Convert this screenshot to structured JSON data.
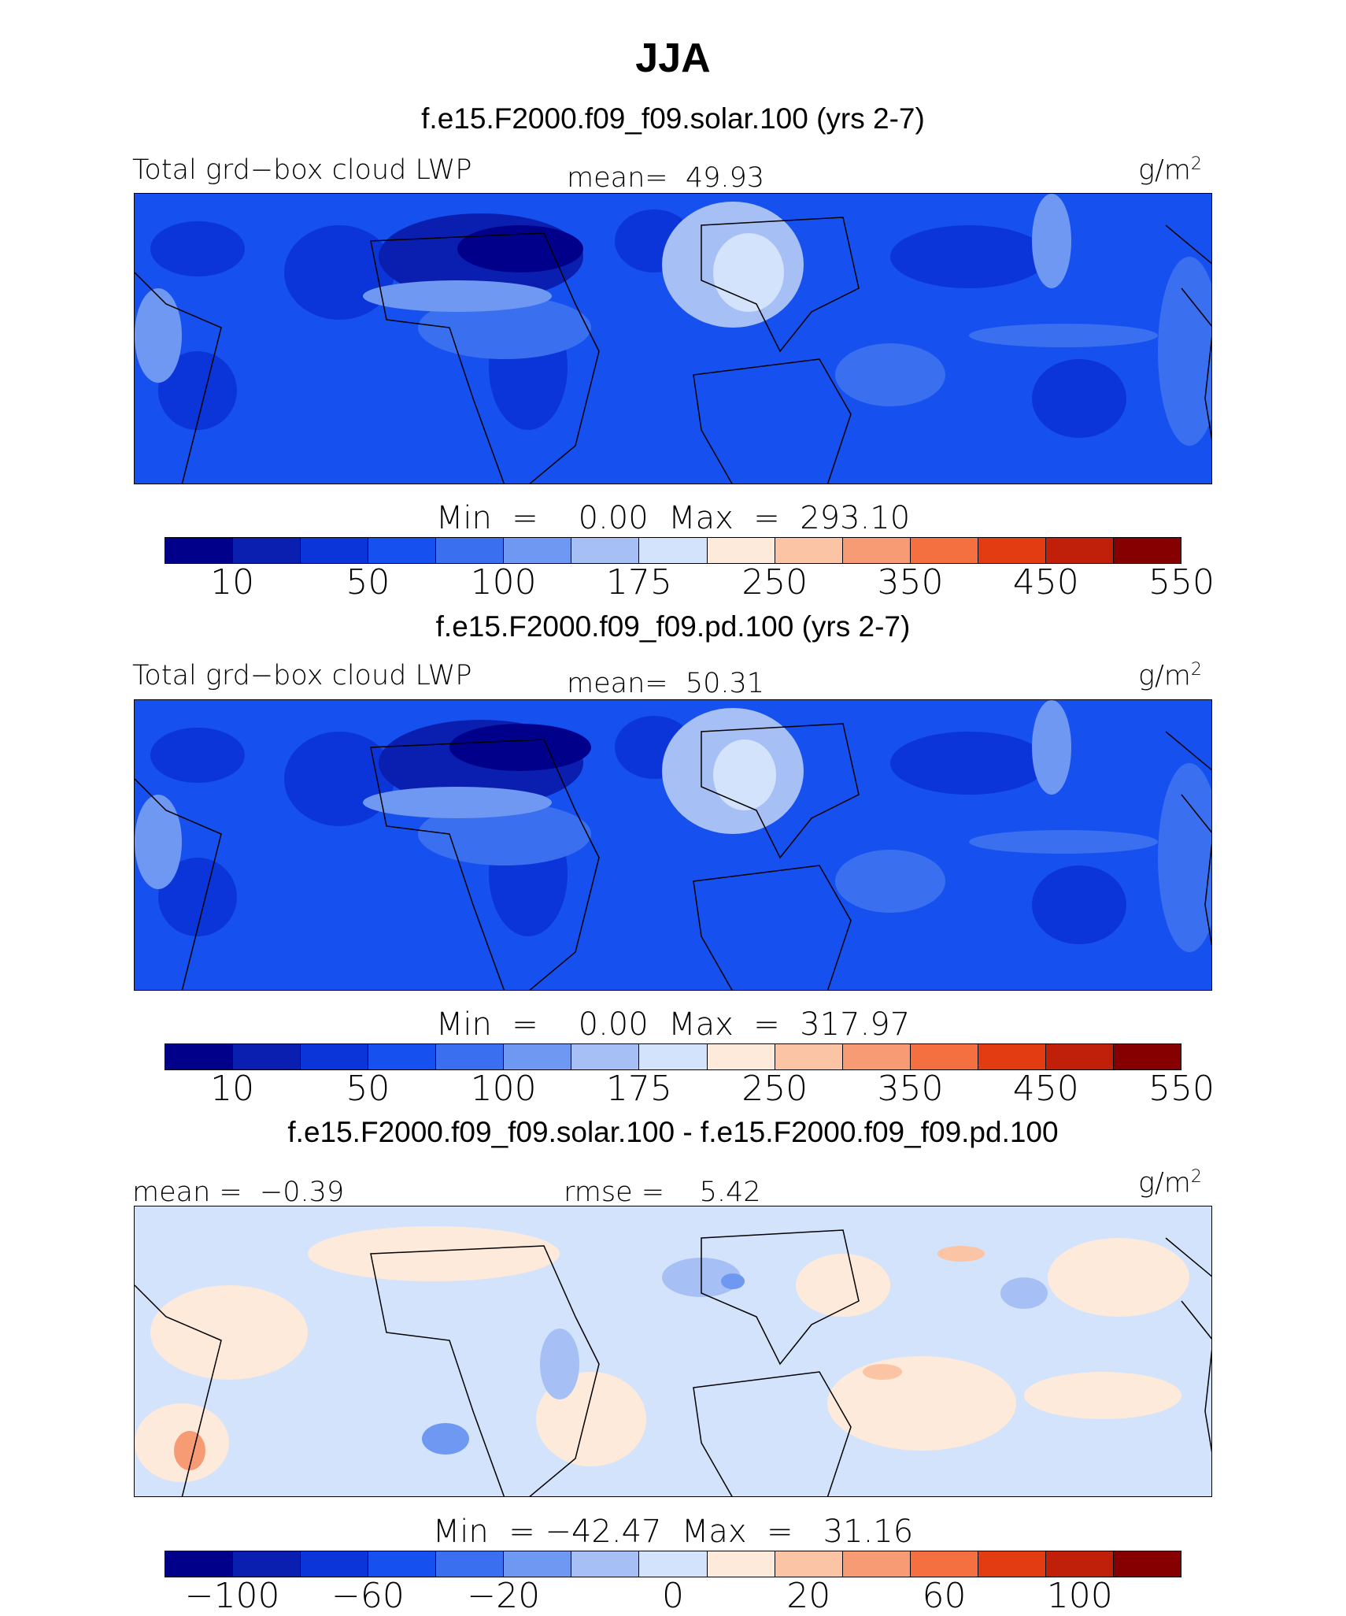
{
  "title": "JJA",
  "colors": {
    "cb1": [
      "#00008b",
      "#0a1fb0",
      "#0b35d8",
      "#1650ef",
      "#3a6ff0",
      "#6f98f2",
      "#a6c0f6",
      "#d3e3fb",
      "#fdeadb",
      "#fbc4a4",
      "#f79b74",
      "#f57040",
      "#e43c12",
      "#c0200a",
      "#860002"
    ],
    "diff": [
      "#00008b",
      "#0a1fb0",
      "#0b35d8",
      "#1650ef",
      "#3a6ff0",
      "#6f98f2",
      "#a6c0f6",
      "#d3e3fb",
      "#fdeadb",
      "#fbc4a4",
      "#f79b74",
      "#f57040",
      "#e43c12",
      "#c0200a",
      "#860002"
    ]
  },
  "panels": [
    {
      "subtitle": "f.e15.F2000.f09_f09.solar.100 (yrs 2-7)",
      "left_label": "Total grd−box cloud LWP",
      "center_label": "mean=  49.93",
      "units_base": "g/m",
      "units_sup": "2",
      "minmax": "Min  =    0.00  Max  =  293.10",
      "ticks": [
        "10",
        "50",
        "100",
        "175",
        "250",
        "350",
        "450",
        "550"
      ]
    },
    {
      "subtitle": "f.e15.F2000.f09_f09.pd.100 (yrs 2-7)",
      "left_label": "Total grd−box cloud LWP",
      "center_label": "mean=  50.31",
      "units_base": "g/m",
      "units_sup": "2",
      "minmax": "Min  =    0.00  Max  =  317.97",
      "ticks": [
        "10",
        "50",
        "100",
        "175",
        "250",
        "350",
        "450",
        "550"
      ]
    },
    {
      "subtitle": "f.e15.F2000.f09_f09.solar.100 - f.e15.F2000.f09_f09.pd.100",
      "left_label": "mean =  −0.39",
      "center_label": "rmse =    5.42",
      "units_base": "g/m",
      "units_sup": "2",
      "minmax": "Min  = −42.47  Max  =   31.16",
      "ticks": [
        "−100",
        "−60",
        "−20",
        "0",
        "20",
        "60",
        "100"
      ]
    }
  ],
  "chart_data": [
    {
      "type": "heatmap",
      "title": "JJA",
      "subtitle": "f.e15.F2000.f09_f09.solar.100 (yrs 2-7)",
      "variable": "Total grd-box cloud LWP",
      "units": "g/m2",
      "mean": 49.93,
      "min": 0.0,
      "max": 293.1,
      "contour_levels": [
        10,
        25,
        50,
        75,
        100,
        125,
        150,
        175,
        200,
        250,
        300,
        350,
        400,
        450,
        500,
        550
      ]
    },
    {
      "type": "heatmap",
      "title": "JJA",
      "subtitle": "f.e15.F2000.f09_f09.pd.100 (yrs 2-7)",
      "variable": "Total grd-box cloud LWP",
      "units": "g/m2",
      "mean": 50.31,
      "min": 0.0,
      "max": 317.97,
      "contour_levels": [
        10,
        25,
        50,
        75,
        100,
        125,
        150,
        175,
        200,
        250,
        300,
        350,
        400,
        450,
        500,
        550
      ]
    },
    {
      "type": "heatmap",
      "title": "JJA",
      "subtitle": "f.e15.F2000.f09_f09.solar.100 - f.e15.F2000.f09_f09.pd.100",
      "units": "g/m2",
      "mean": -0.39,
      "rmse": 5.42,
      "min": -42.47,
      "max": 31.16,
      "contour_levels": [
        -100,
        -80,
        -60,
        -40,
        -20,
        -10,
        0,
        10,
        20,
        40,
        60,
        80,
        100
      ]
    }
  ]
}
